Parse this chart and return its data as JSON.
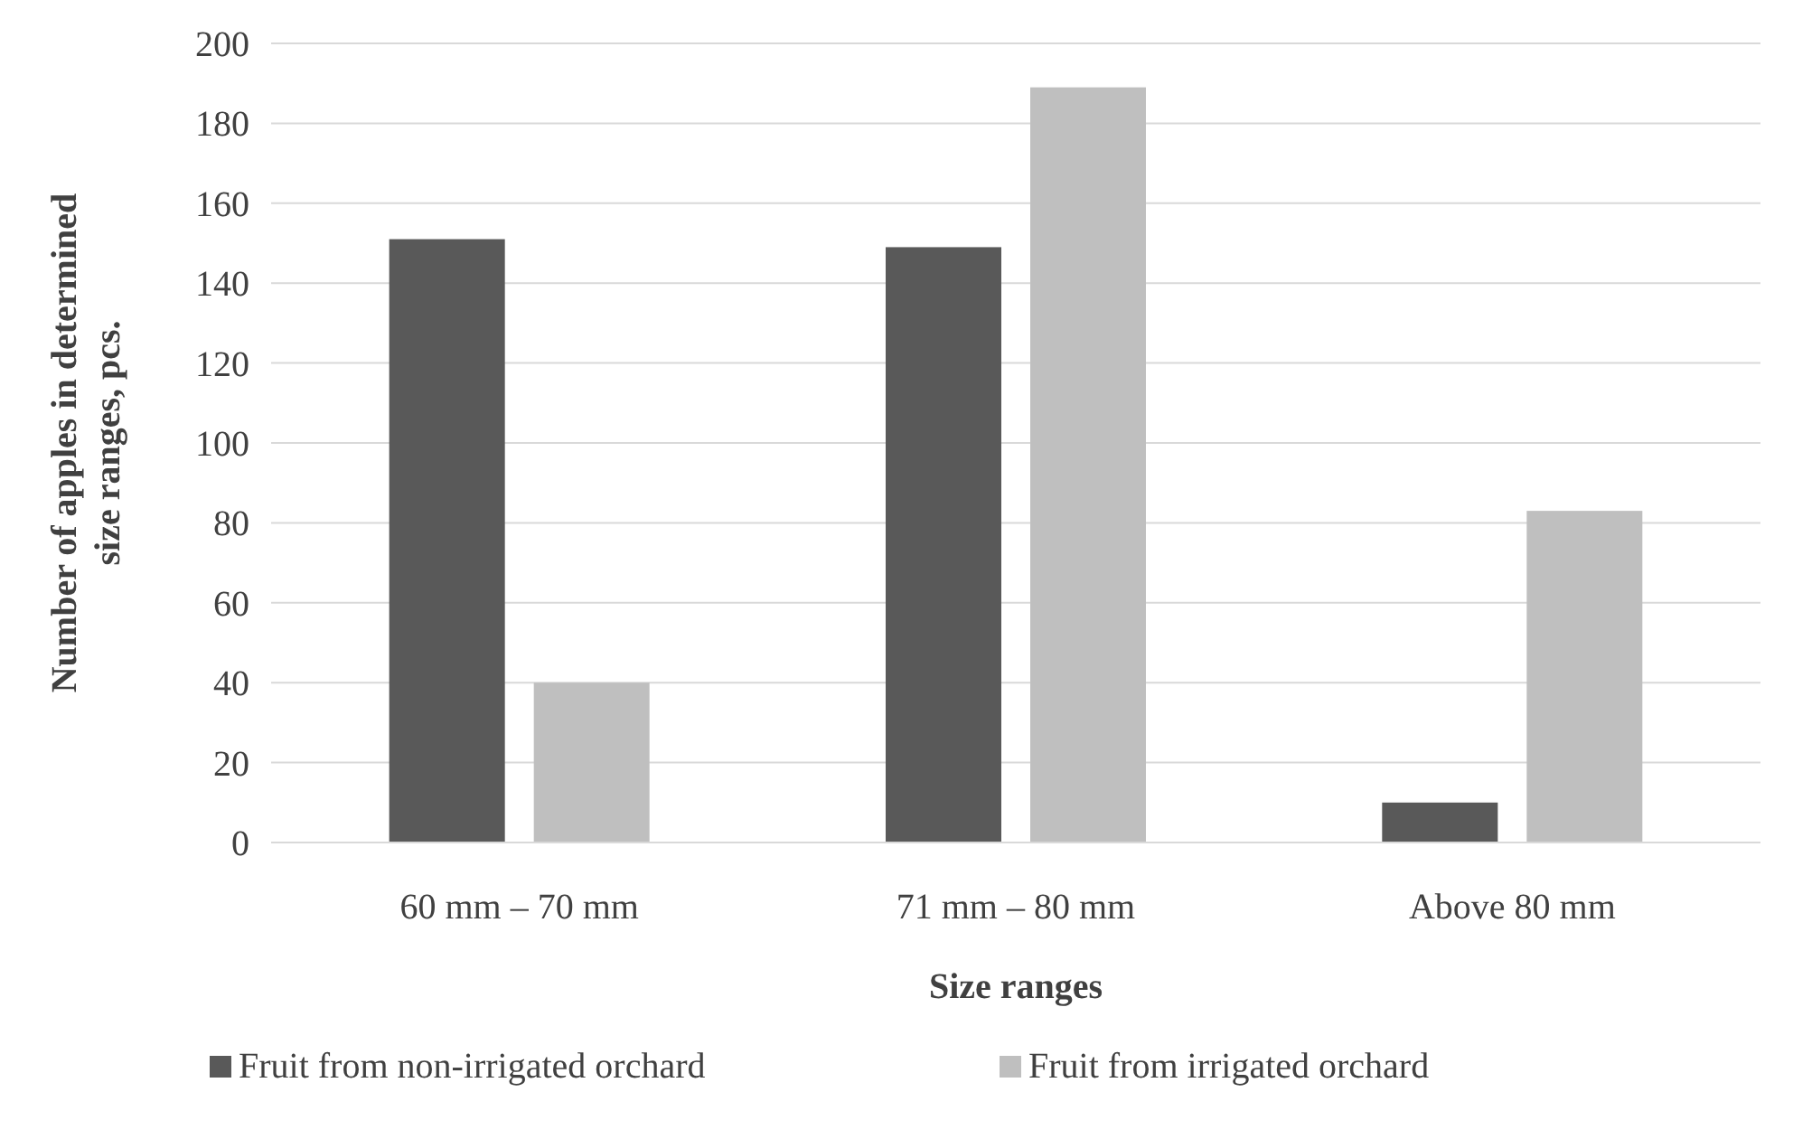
{
  "chart_data": {
    "type": "bar",
    "xlabel": "Size ranges",
    "ylabel": "Number of apples in determined size ranges, pcs.",
    "categories": [
      "60 mm – 70 mm",
      "71 mm – 80 mm",
      "Above 80 mm"
    ],
    "series": [
      {
        "name": "Fruit from non-irrigated orchard",
        "color": "#595959",
        "values": [
          151,
          149,
          10
        ]
      },
      {
        "name": "Fruit from irrigated orchard",
        "color": "#bfbfbf",
        "values": [
          40,
          189,
          83
        ]
      }
    ],
    "ylim": [
      0,
      200
    ],
    "yticks": [
      0,
      20,
      40,
      60,
      80,
      100,
      120,
      140,
      160,
      180,
      200
    ],
    "grid": "y",
    "legend": "bottom"
  }
}
